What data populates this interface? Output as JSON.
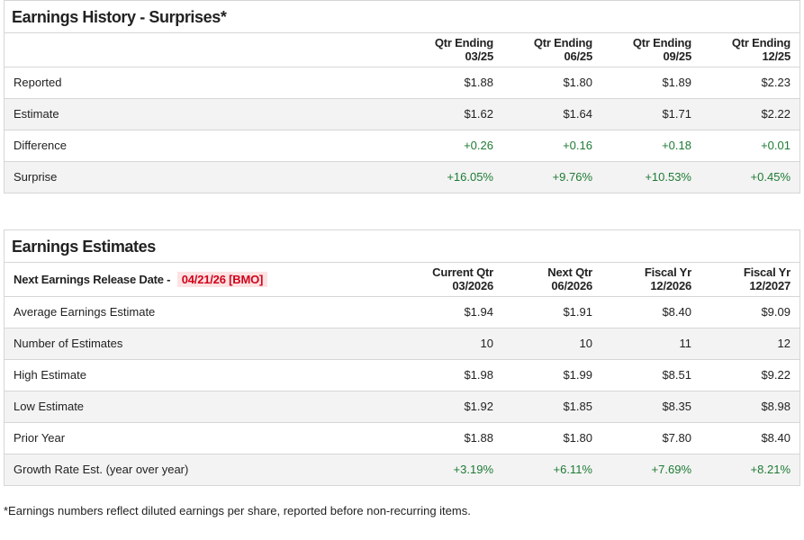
{
  "history": {
    "title": "Earnings History - Surprises*",
    "columns": [
      [
        "Qtr Ending",
        "03/25"
      ],
      [
        "Qtr Ending",
        "06/25"
      ],
      [
        "Qtr Ending",
        "09/25"
      ],
      [
        "Qtr Ending",
        "12/25"
      ]
    ],
    "rows": [
      {
        "label": "Reported",
        "values": [
          "$1.88",
          "$1.80",
          "$1.89",
          "$2.23"
        ]
      },
      {
        "label": "Estimate",
        "values": [
          "$1.62",
          "$1.64",
          "$1.71",
          "$2.22"
        ]
      },
      {
        "label": "Difference",
        "values": [
          "+0.26",
          "+0.16",
          "+0.18",
          "+0.01"
        ],
        "positive": true
      },
      {
        "label": "Surprise",
        "values": [
          "+16.05%",
          "+9.76%",
          "+10.53%",
          "+0.45%"
        ],
        "positive": true
      }
    ]
  },
  "estimates": {
    "title": "Earnings Estimates",
    "release_label": "Next Earnings Release Date -",
    "release_date": "04/21/26 [BMO]",
    "columns": [
      [
        "Current Qtr",
        "03/2026"
      ],
      [
        "Next Qtr",
        "06/2026"
      ],
      [
        "Fiscal Yr",
        "12/2026"
      ],
      [
        "Fiscal Yr",
        "12/2027"
      ]
    ],
    "rows": [
      {
        "label": "Average Earnings Estimate",
        "values": [
          "$1.94",
          "$1.91",
          "$8.40",
          "$9.09"
        ]
      },
      {
        "label": "Number of Estimates",
        "values": [
          "10",
          "10",
          "11",
          "12"
        ]
      },
      {
        "label": "High Estimate",
        "values": [
          "$1.98",
          "$1.99",
          "$8.51",
          "$9.22"
        ]
      },
      {
        "label": "Low Estimate",
        "values": [
          "$1.92",
          "$1.85",
          "$8.35",
          "$8.98"
        ]
      },
      {
        "label": "Prior Year",
        "values": [
          "$1.88",
          "$1.80",
          "$7.80",
          "$8.40"
        ]
      },
      {
        "label": "Growth Rate Est. (year over year)",
        "values": [
          "+3.19%",
          "+6.11%",
          "+7.69%",
          "+8.21%"
        ],
        "positive": true
      }
    ]
  },
  "colors": {
    "positive": "#1e7b34",
    "highlight": "#d0021b",
    "highlight_bg": "#fde3e3"
  },
  "footnote": "*Earnings numbers reflect diluted earnings per share, reported before non-recurring items."
}
